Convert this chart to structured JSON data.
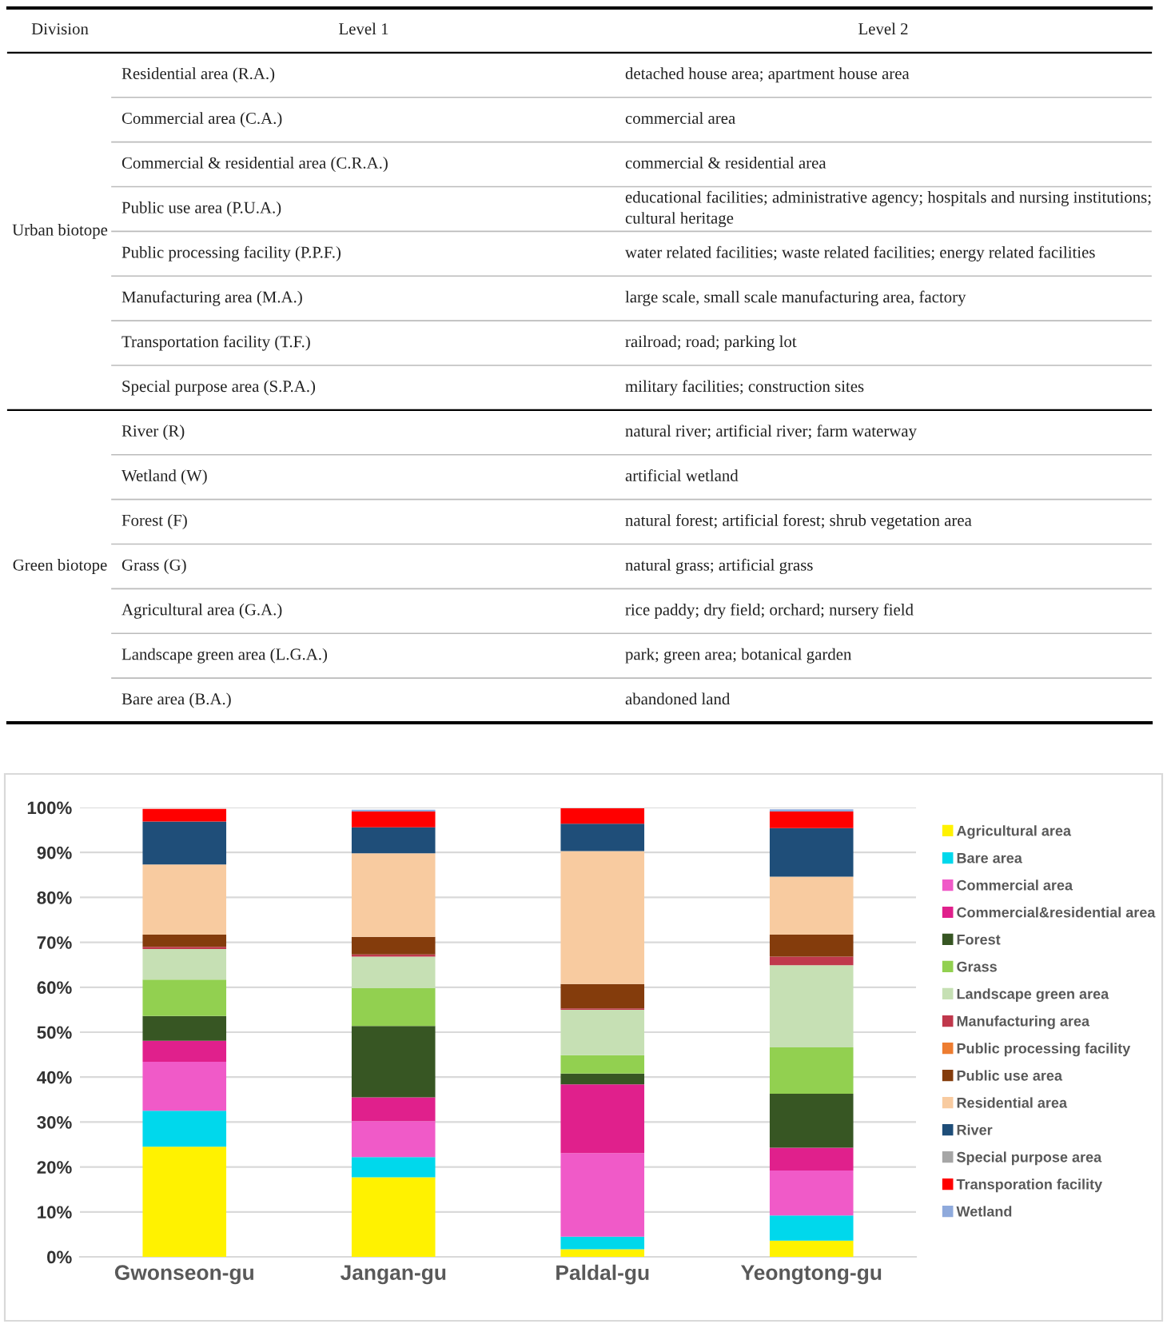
{
  "chart_data": [
    {
      "type": "other",
      "categories": [
        "Division",
        "Level 1",
        "Level 2"
      ],
      "cell_labels": [
        [
          "Urban biotope",
          "Residential area (R.A.)",
          "detached house area; apartment house area"
        ],
        [
          null,
          "Commercial area (C.A.)",
          "commercial area"
        ],
        [
          null,
          "Commercial & residential area (C.R.A.)",
          "commercial & residential area"
        ],
        [
          null,
          "Public use area (P.U.A.)",
          "educational facilities; administrative agency; hospitals and nursing institutions; cultural heritage"
        ],
        [
          null,
          "Public processing facility (P.P.F.)",
          "water related facilities; waste related facilities; energy related facilities"
        ],
        [
          null,
          "Manufacturing area (M.A.)",
          "large scale, small scale manufacturing area, factory"
        ],
        [
          null,
          "Transportation facility (T.F.)",
          "railroad; road; parking lot"
        ],
        [
          null,
          "Special purpose area (S.P.A.)",
          "military facilities; construction sites"
        ],
        [
          "Green biotope",
          "River (R)",
          "natural river; artificial river; farm waterway"
        ],
        [
          null,
          "Wetland (W)",
          "artificial wetland"
        ],
        [
          null,
          "Forest (F)",
          "natural forest; artificial forest; shrub vegetation area"
        ],
        [
          null,
          "Grass (G)",
          "natural grass; artificial grass"
        ],
        [
          null,
          "Agricultural area (G.A.)",
          "rice paddy; dry field; orchard; nursery field"
        ],
        [
          null,
          "Landscape green area (L.G.A.)",
          "park; green area; botanical garden"
        ],
        [
          null,
          "Bare area (B.A.)",
          "abandoned land"
        ]
      ]
    },
    {
      "type": "bar",
      "stacked": true,
      "categories": [
        "Gwonseon-gu",
        "Jangan-gu",
        "Paldal-gu",
        "Yeongtong-gu"
      ],
      "ylim": [
        0,
        100
      ],
      "yticks": [
        {
          "value": 0,
          "label": "0%"
        },
        {
          "value": 10,
          "label": "10%"
        },
        {
          "value": 20,
          "label": "20%"
        },
        {
          "value": 30,
          "label": "30%"
        },
        {
          "value": 40,
          "label": "40%"
        },
        {
          "value": 50,
          "label": "50%"
        },
        {
          "value": 60,
          "label": "60%"
        },
        {
          "value": 70,
          "label": "70%"
        },
        {
          "value": 80,
          "label": "80%"
        },
        {
          "value": 90,
          "label": "90%"
        },
        {
          "value": 100,
          "label": "100%"
        }
      ],
      "grid": "y",
      "legend": "right",
      "series": [
        {
          "name": "Agricultural area",
          "color": "#fff200",
          "values": [
            24.5,
            17.7,
            1.7,
            3.6
          ]
        },
        {
          "name": "Bare area",
          "color": "#00d8ec",
          "values": [
            8.0,
            4.5,
            2.8,
            5.6
          ]
        },
        {
          "name": "Commercial area",
          "color": "#f05ac8",
          "values": [
            10.9,
            8.0,
            18.6,
            10.0
          ]
        },
        {
          "name": "Commercial&residential area",
          "color": "#e0208c",
          "values": [
            4.7,
            5.3,
            15.3,
            5.1
          ]
        },
        {
          "name": "Forest",
          "color": "#375623",
          "values": [
            5.5,
            15.9,
            2.4,
            12.0
          ]
        },
        {
          "name": "Grass",
          "color": "#92d050",
          "values": [
            8.1,
            8.4,
            4.1,
            10.3
          ]
        },
        {
          "name": "Landscape green area",
          "color": "#c6e0b4",
          "values": [
            6.8,
            7.0,
            10.1,
            18.3
          ]
        },
        {
          "name": "Manufacturing area",
          "color": "#c0384c",
          "values": [
            0.5,
            0.5,
            0.3,
            1.9
          ]
        },
        {
          "name": "Public processing facility",
          "color": "#ed7d31",
          "values": [
            0,
            0,
            0,
            0
          ]
        },
        {
          "name": "Public use area",
          "color": "#843c0c",
          "values": [
            2.7,
            3.9,
            5.4,
            4.9
          ]
        },
        {
          "name": "Residential area",
          "color": "#f8cba0",
          "values": [
            15.6,
            18.6,
            29.6,
            12.9
          ]
        },
        {
          "name": "River",
          "color": "#1f4e79",
          "values": [
            9.6,
            5.8,
            6.1,
            10.8
          ]
        },
        {
          "name": "Special purpose area",
          "color": "#a6a6a6",
          "values": [
            null,
            null,
            null,
            null
          ]
        },
        {
          "name": "Transporation facility",
          "color": "#ff0000",
          "values": [
            2.8,
            3.5,
            3.4,
            3.7
          ]
        },
        {
          "name": "Wetland",
          "color": "#8faadc",
          "values": [
            0,
            0.4,
            0,
            0.5
          ]
        }
      ]
    }
  ]
}
